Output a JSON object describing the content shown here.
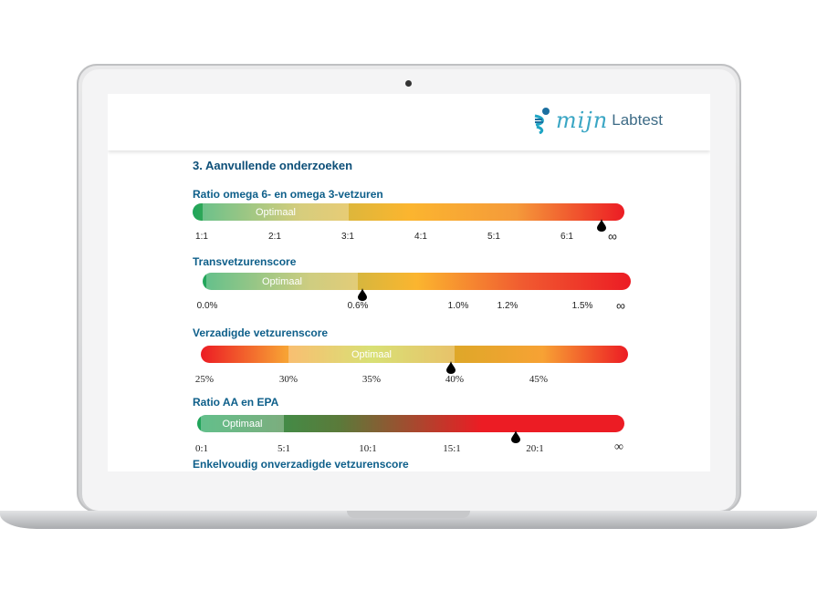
{
  "logo": {
    "script": "mijn",
    "text": "Labtest"
  },
  "section_title": "3. Aanvullende onderzoeken",
  "next_title": "Enkelvoudig onverzadigde vetzurenscore",
  "bars": [
    {
      "title": "Ratio omega 6- en omega 3-vetzuren",
      "optimal_label": "Optimaal",
      "ticks": [
        "1:1",
        "2:1",
        "3:1",
        "4:1",
        "5:1",
        "6:1",
        "∞"
      ],
      "marker_value": "6.5:1",
      "gradient": [
        "#1fa55a",
        "#c5b845",
        "#fbb52f",
        "#f59a3a",
        "#ec1c24"
      ]
    },
    {
      "title": "Transvetzurenscore",
      "optimal_label": "Optimaal",
      "ticks": [
        "0.0%",
        "0.6%",
        "1.0%",
        "1.2%",
        "1.5%",
        "∞"
      ],
      "marker_value": "0.62%",
      "gradient": [
        "#1fa55a",
        "#b9b84a",
        "#fbb52f",
        "#f05a30",
        "#ec1c24"
      ]
    },
    {
      "title": "Verzadigde vetzurenscore",
      "optimal_label": "Optimaal",
      "ticks": [
        "25%",
        "30%",
        "35%",
        "40%",
        "45%"
      ],
      "marker_value": "39.8%",
      "gradient": [
        "#ec1c24",
        "#f7a234",
        "#c8d33a",
        "#dfa729",
        "#f7a234",
        "#ec1c24"
      ]
    },
    {
      "title": "Ratio AA en EPA",
      "optimal_label": "Optimaal",
      "ticks": [
        "0:1",
        "5:1",
        "10:1",
        "15:1",
        "20:1",
        "∞"
      ],
      "marker_value": "18.8:1",
      "gradient": [
        "#1fa55a",
        "#5b7a3a",
        "#ec1c24",
        "#ec1c24"
      ]
    }
  ]
}
